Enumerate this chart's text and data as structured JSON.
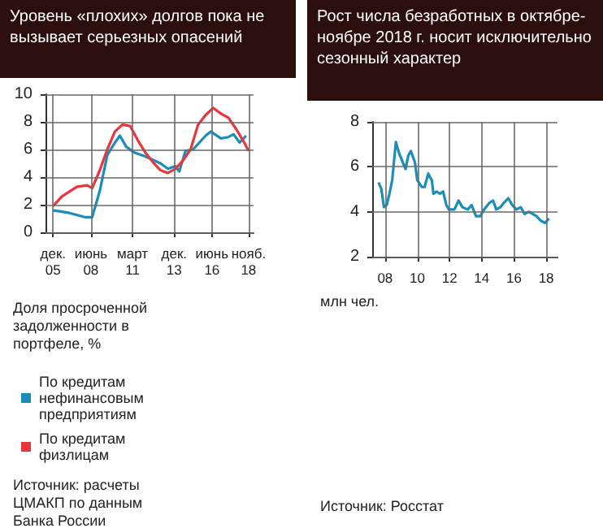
{
  "chart_data": [
    {
      "type": "line",
      "title": "Уровень «плохих» долгов пока не вызывает серьезных опасений",
      "xlabel": "Доля просроченной задолженности в портфеле, %",
      "annotations": [
        "Источник: расчеты ЦМАКП по данным Банка России"
      ],
      "legend": "bottom",
      "grid": true,
      "xlim": [
        "2005-06",
        "2019-03"
      ],
      "xticks": [
        {
          "value": "2005-12",
          "label": "дек.\n05"
        },
        {
          "value": "2008-06",
          "label": "июнь\n08"
        },
        {
          "value": "2011-03",
          "label": "март\n11"
        },
        {
          "value": "2013-12",
          "label": "дек.\n13"
        },
        {
          "value": "2016-06",
          "label": "июнь\n16"
        },
        {
          "value": "2018-11",
          "label": "нояб.\n18"
        }
      ],
      "ylim": [
        0,
        10
      ],
      "yticks": [
        0,
        2,
        4,
        6,
        8,
        10
      ],
      "series": [
        {
          "name": "По кредитам нефинансовым предприятиям",
          "color": "#1a8db8",
          "x": [
            "2005-12",
            "2007-01",
            "2008-01",
            "2008-07",
            "2009-01",
            "2009-07",
            "2010-01",
            "2010-05",
            "2010-10",
            "2011-04",
            "2012-01",
            "2013-01",
            "2013-07",
            "2014-01",
            "2014-04",
            "2014-09",
            "2015-03",
            "2016-01",
            "2016-05",
            "2017-01",
            "2017-07",
            "2017-11",
            "2018-04",
            "2018-09"
          ],
          "values": [
            1.6,
            1.4,
            1.1,
            1.1,
            3.0,
            5.6,
            6.5,
            7.0,
            6.2,
            5.8,
            5.5,
            5.0,
            4.6,
            4.8,
            4.4,
            5.9,
            6.0,
            7.0,
            7.3,
            6.8,
            6.9,
            7.1,
            6.5,
            7.0
          ]
        },
        {
          "name": "По кредитам физлицам",
          "color": "#e8363c",
          "x": [
            "2005-12",
            "2006-07",
            "2007-07",
            "2008-03",
            "2008-07",
            "2009-01",
            "2009-07",
            "2010-01",
            "2010-07",
            "2011-01",
            "2011-07",
            "2012-01",
            "2012-07",
            "2013-01",
            "2013-07",
            "2014-01",
            "2014-07",
            "2015-01",
            "2015-07",
            "2016-01",
            "2016-07",
            "2017-01",
            "2017-07",
            "2018-01",
            "2018-07",
            "2018-11"
          ],
          "values": [
            1.9,
            2.6,
            3.3,
            3.4,
            3.2,
            4.5,
            6.0,
            7.3,
            7.8,
            7.7,
            6.7,
            5.8,
            5.1,
            4.5,
            4.3,
            4.6,
            5.2,
            6.0,
            7.8,
            8.5,
            9.0,
            8.6,
            8.3,
            7.5,
            6.6,
            5.9
          ]
        }
      ]
    },
    {
      "type": "line",
      "title": "Рост числа безработных в октябре-ноябре 2018 г. носит исключительно сезонный характер",
      "ylabel": "млн чел.",
      "annotations": [
        "Источник: Росстат"
      ],
      "grid": true,
      "xlim": [
        2007.2,
        2018.7
      ],
      "xticks": [
        {
          "value": 2008,
          "label": "08"
        },
        {
          "value": 2010,
          "label": "10"
        },
        {
          "value": 2012,
          "label": "12"
        },
        {
          "value": 2014,
          "label": "14"
        },
        {
          "value": 2016,
          "label": "16"
        },
        {
          "value": 2018,
          "label": "18"
        }
      ],
      "ylim": [
        2,
        8
      ],
      "yticks": [
        2,
        4,
        6,
        8
      ],
      "series": [
        {
          "color": "#1a8db8",
          "x": [
            2007.6,
            2007.77,
            2007.93,
            2008.1,
            2008.27,
            2008.44,
            2008.67,
            2008.87,
            2009.1,
            2009.27,
            2009.44,
            2009.6,
            2009.85,
            2010.0,
            2010.28,
            2010.45,
            2010.68,
            2010.9,
            2011.0,
            2011.2,
            2011.4,
            2011.6,
            2011.8,
            2011.96,
            2012.3,
            2012.56,
            2012.8,
            2013.13,
            2013.37,
            2013.64,
            2013.9,
            2014.14,
            2014.48,
            2014.7,
            2014.9,
            2015.15,
            2015.38,
            2015.65,
            2015.89,
            2016.15,
            2016.42,
            2016.66,
            2016.93,
            2017.16,
            2017.4,
            2017.66,
            2017.93,
            2018.17
          ],
          "values": [
            5.3,
            5.0,
            4.2,
            4.3,
            4.8,
            5.4,
            7.1,
            6.6,
            6.2,
            5.9,
            6.5,
            6.7,
            6.2,
            5.4,
            5.1,
            5.1,
            5.7,
            5.4,
            4.8,
            4.9,
            4.8,
            4.9,
            4.3,
            4.1,
            4.1,
            4.5,
            4.2,
            4.1,
            4.3,
            3.8,
            3.8,
            4.1,
            4.4,
            4.5,
            4.1,
            4.2,
            4.4,
            4.6,
            4.3,
            4.1,
            4.2,
            3.9,
            4.0,
            3.9,
            3.8,
            3.6,
            3.5,
            3.7
          ]
        }
      ]
    }
  ]
}
